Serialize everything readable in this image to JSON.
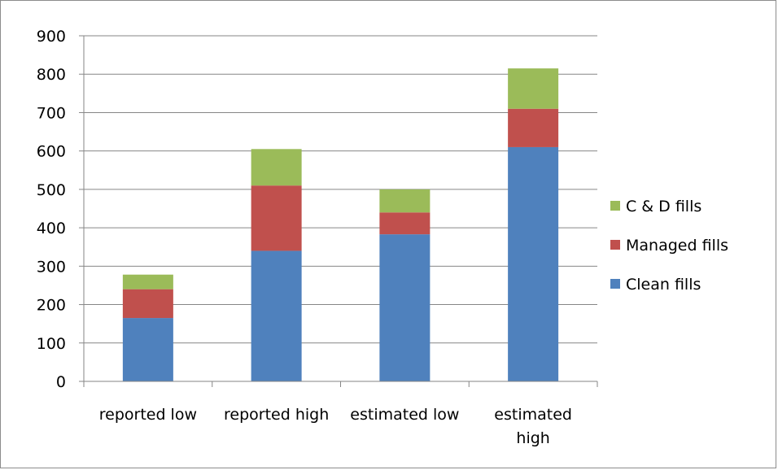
{
  "chart_data": {
    "type": "bar",
    "stacked": true,
    "categories": [
      [
        "reported low"
      ],
      [
        "reported high"
      ],
      [
        "estimated low"
      ],
      [
        "estimated",
        "high"
      ]
    ],
    "series": [
      {
        "name": "Clean fills",
        "color": "#4F81BD",
        "values": [
          165,
          340,
          383,
          610
        ]
      },
      {
        "name": "Managed fills",
        "color": "#C0504D",
        "values": [
          75,
          170,
          57,
          100
        ]
      },
      {
        "name": "C & D fills",
        "color": "#9BBB59",
        "values": [
          38,
          95,
          60,
          105
        ]
      }
    ],
    "ylim": [
      0,
      900
    ],
    "yticks": [
      0,
      100,
      200,
      300,
      400,
      500,
      600,
      700,
      800,
      900
    ],
    "grid": true,
    "legend_position": "right",
    "legend_order": [
      2,
      1,
      0
    ]
  }
}
